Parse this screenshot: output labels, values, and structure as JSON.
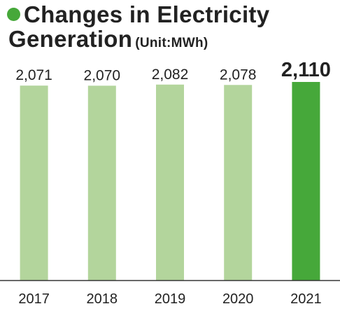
{
  "title": {
    "line1": "Changes in Electricity",
    "line2": "Generation",
    "unit": "(Unit:MWh)"
  },
  "colors": {
    "accent": "#46a83a",
    "bar": "#b3d59c",
    "highlight": "#46a83a",
    "axis": "#333333"
  },
  "chart_data": {
    "type": "bar",
    "title": "Changes in Electricity Generation (Unit:MWh)",
    "categories": [
      "2017",
      "2018",
      "2019",
      "2020",
      "2021"
    ],
    "values": [
      2071,
      2070,
      2082,
      2078,
      2110
    ],
    "value_labels": [
      "2,071",
      "2,070",
      "2,082",
      "2,078",
      "2,110"
    ],
    "highlight_index": 4,
    "ylim": [
      0,
      2110
    ],
    "grid": false,
    "legend": "none"
  }
}
